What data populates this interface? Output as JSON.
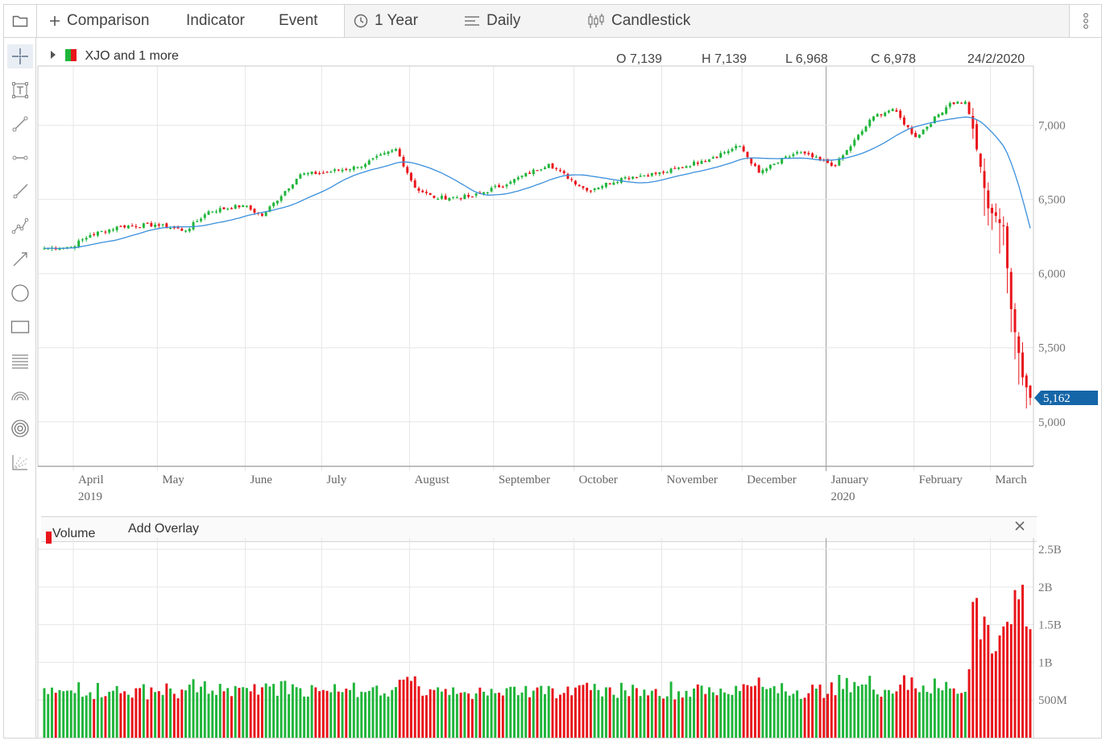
{
  "toolbar": {
    "comparison": "Comparison",
    "indicator": "Indicator",
    "event": "Event",
    "range": "1 Year",
    "interval": "Daily",
    "chart_type": "Candlestick"
  },
  "legend": {
    "label": "XJO and 1 more"
  },
  "ohlc": {
    "open": "O 7,139",
    "high": "H 7,139",
    "low": "L 6,968",
    "close": "C 6,978",
    "date": "24/2/2020"
  },
  "volume_panel": {
    "label": "Volume",
    "add_overlay": "Add Overlay"
  },
  "colors": {
    "up": "#1fb53a",
    "down": "#e8141a",
    "ma": "#3a8fdc",
    "last_badge": "#1566a8",
    "grid": "#e6e6e6"
  },
  "icons": [
    "folder-icon",
    "plus-icon",
    "clock-icon",
    "bars-icon",
    "candlestick-icon",
    "more-vertical-icon",
    "crosshair-icon",
    "text-icon",
    "line-icon",
    "horizontal-line-icon",
    "ray-icon",
    "polyline-icon",
    "arrow-icon",
    "circle-icon",
    "rectangle-icon",
    "fibonacci-icon",
    "arc-icon",
    "spiral-icon",
    "fan-icon"
  ],
  "chart_data": {
    "type": "candlestick",
    "series": [
      {
        "name": "XJO",
        "kind": "candlestick",
        "anchors": [
          {
            "date": "2019-03-20",
            "close": 6170
          },
          {
            "date": "2019-03-29",
            "close": 6180
          },
          {
            "date": "2019-04-05",
            "close": 6260
          },
          {
            "date": "2019-04-17",
            "close": 6320
          },
          {
            "date": "2019-04-30",
            "close": 6330
          },
          {
            "date": "2019-05-10",
            "close": 6290
          },
          {
            "date": "2019-05-20",
            "close": 6420
          },
          {
            "date": "2019-05-31",
            "close": 6460
          },
          {
            "date": "2019-06-07",
            "close": 6390
          },
          {
            "date": "2019-06-21",
            "close": 6670
          },
          {
            "date": "2019-07-01",
            "close": 6680
          },
          {
            "date": "2019-07-12",
            "close": 6720
          },
          {
            "date": "2019-07-26",
            "close": 6840
          },
          {
            "date": "2019-08-02",
            "close": 6580
          },
          {
            "date": "2019-08-09",
            "close": 6510
          },
          {
            "date": "2019-08-23",
            "close": 6520
          },
          {
            "date": "2019-09-06",
            "close": 6620
          },
          {
            "date": "2019-09-20",
            "close": 6740
          },
          {
            "date": "2019-10-04",
            "close": 6560
          },
          {
            "date": "2019-10-18",
            "close": 6650
          },
          {
            "date": "2019-11-01",
            "close": 6680
          },
          {
            "date": "2019-11-15",
            "close": 6760
          },
          {
            "date": "2019-11-29",
            "close": 6860
          },
          {
            "date": "2019-12-06",
            "close": 6680
          },
          {
            "date": "2019-12-20",
            "close": 6820
          },
          {
            "date": "2020-01-03",
            "close": 6730
          },
          {
            "date": "2020-01-17",
            "close": 7060
          },
          {
            "date": "2020-01-24",
            "close": 7110
          },
          {
            "date": "2020-02-03",
            "close": 6920
          },
          {
            "date": "2020-02-14",
            "close": 7150
          },
          {
            "date": "2020-02-20",
            "close": 7160
          },
          {
            "date": "2020-02-24",
            "close": 6978
          },
          {
            "date": "2020-02-28",
            "close": 6440
          },
          {
            "date": "2020-03-05",
            "close": 6320
          },
          {
            "date": "2020-03-09",
            "close": 5760
          },
          {
            "date": "2020-03-12",
            "close": 5300
          },
          {
            "date": "2020-03-16",
            "close": 5162
          }
        ]
      },
      {
        "name": "MA",
        "kind": "line"
      },
      {
        "name": "Volume",
        "kind": "bar"
      }
    ],
    "last_value": 5162,
    "last_value_label": "5,162",
    "x_labels": [
      {
        "month": "April",
        "year": "2019"
      },
      {
        "month": "May",
        "year": ""
      },
      {
        "month": "June",
        "year": ""
      },
      {
        "month": "July",
        "year": ""
      },
      {
        "month": "August",
        "year": ""
      },
      {
        "month": "September",
        "year": ""
      },
      {
        "month": "October",
        "year": ""
      },
      {
        "month": "November",
        "year": ""
      },
      {
        "month": "December",
        "year": ""
      },
      {
        "month": "January",
        "year": "2020"
      },
      {
        "month": "February",
        "year": ""
      },
      {
        "month": "March",
        "year": ""
      }
    ],
    "price_ticks": [
      {
        "v": 7000,
        "label": "7,000"
      },
      {
        "v": 6500,
        "label": "6,500"
      },
      {
        "v": 6000,
        "label": "6,000"
      },
      {
        "v": 5500,
        "label": "5,500"
      },
      {
        "v": 5000,
        "label": "5,000"
      }
    ],
    "price_range": [
      4700,
      7400
    ],
    "volume_ticks": [
      {
        "v": 2500000000,
        "label": "2.5B"
      },
      {
        "v": 2000000000,
        "label": "2B"
      },
      {
        "v": 1500000000,
        "label": "1.5B"
      },
      {
        "v": 1000000000,
        "label": "1B"
      },
      {
        "v": 500000000,
        "label": "500M"
      }
    ],
    "volume_range": [
      0,
      2650000000
    ],
    "grid": true
  }
}
